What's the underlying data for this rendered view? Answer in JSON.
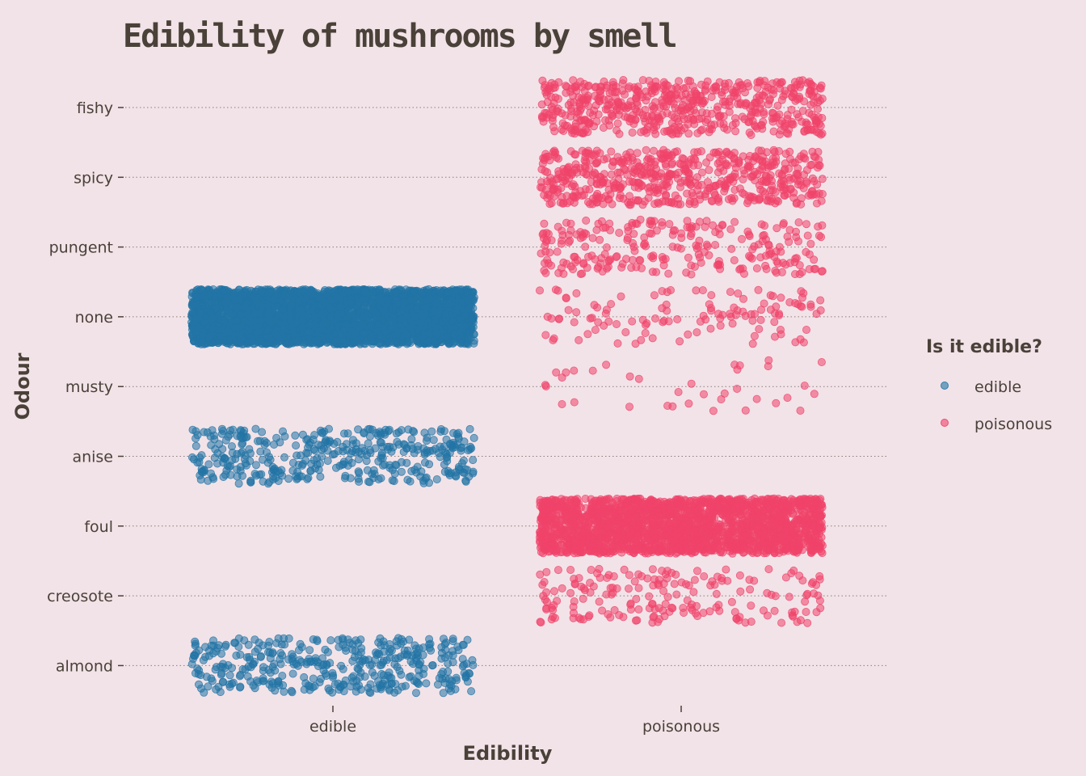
{
  "chart_data": {
    "type": "scatter",
    "title": "Edibility of mushrooms by smell",
    "xlabel": "Edibility",
    "ylabel": "Odour",
    "x_categories": [
      "edible",
      "poisonous"
    ],
    "y_categories": [
      "almond",
      "creosote",
      "foul",
      "anise",
      "musty",
      "none",
      "pungent",
      "spicy",
      "fishy"
    ],
    "jitter": true,
    "grid": "horizontal-dotted",
    "legend": {
      "title": "Is it edible?",
      "placement": "right",
      "entries": [
        {
          "label": "edible",
          "color": "#2274a5"
        },
        {
          "label": "poisonous",
          "color": "#f0436a"
        }
      ]
    },
    "point_counts": [
      {
        "edibility": "edible",
        "odour": "almond",
        "count": 400
      },
      {
        "edibility": "edible",
        "odour": "anise",
        "count": 400
      },
      {
        "edibility": "edible",
        "odour": "none",
        "count": 3408
      },
      {
        "edibility": "poisonous",
        "odour": "creosote",
        "count": 192
      },
      {
        "edibility": "poisonous",
        "odour": "foul",
        "count": 2160
      },
      {
        "edibility": "poisonous",
        "odour": "none",
        "count": 120
      },
      {
        "edibility": "poisonous",
        "odour": "musty",
        "count": 36
      },
      {
        "edibility": "poisonous",
        "odour": "pungent",
        "count": 256
      },
      {
        "edibility": "poisonous",
        "odour": "spicy",
        "count": 576
      },
      {
        "edibility": "poisonous",
        "odour": "fishy",
        "count": 576
      }
    ]
  }
}
